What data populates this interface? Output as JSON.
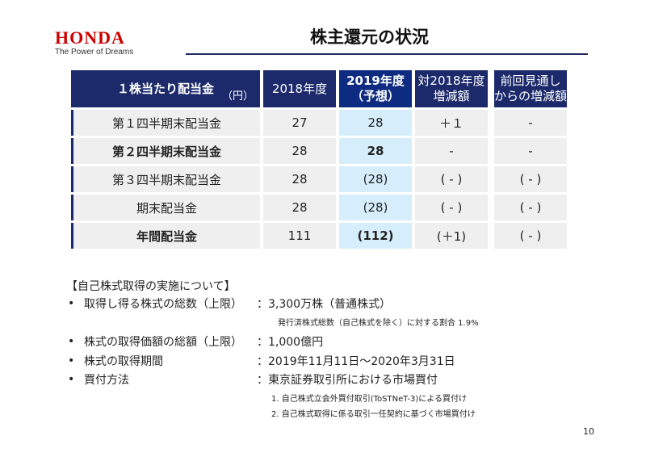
{
  "header": {
    "logo_word": "HONDA",
    "logo_tagline": "The Power of Dreams",
    "title": "株主還元の状況"
  },
  "dividend_table": {
    "header": {
      "label": "１株当たり配当金",
      "unit": "（円）",
      "col_2018": "2018年度",
      "col_2019_line1": "2019年度",
      "col_2019_line2": "（予想）",
      "col_diff_line1": "対2018年度",
      "col_diff_line2": "増減額",
      "col_prev_line1": "前回見通し",
      "col_prev_line2": "からの増減額"
    },
    "rows": [
      {
        "label": "第１四半期末配当金",
        "y2018": "27",
        "y2019": "28",
        "diff": "＋１",
        "prev": "-"
      },
      {
        "label": "第２四半期末配当金",
        "y2018": "28",
        "y2019": "28",
        "diff": "-",
        "prev": "-"
      },
      {
        "label": "第３四半期末配当金",
        "y2018": "28",
        "y2019": "(28)",
        "diff": "( - )",
        "prev": "( - )"
      },
      {
        "label": "期末配当金",
        "y2018": "28",
        "y2019": "(28)",
        "diff": "( - )",
        "prev": "( - )"
      },
      {
        "label": "年間配当金",
        "y2018": "111",
        "y2019": "(112)",
        "diff": "(＋1)",
        "prev": "( - )"
      }
    ]
  },
  "buyback": {
    "heading": "【自己株式取得の実施について】",
    "bullet": "•",
    "items": [
      {
        "label": "取得し得る株式の総数（上限）",
        "value": "：3,300万株（普通株式）"
      },
      {
        "label": "株式の取得価額の総額（上限）",
        "value": "：1,000億円"
      },
      {
        "label": "株式の取得期間",
        "value": "：2019年11月11日～2020年3月31日"
      },
      {
        "label": "買付方法",
        "value": "：東京証券取引所における市場買付"
      }
    ],
    "ratio_note": "発行済株式総数（自己株式を除く）に対する割合 1.9%",
    "method_notes": [
      "1.  自己株式立会外買付取引(ToSTNeT-3)による買付け",
      "2.  自己株式取得に係る取引一任契約に基づく市場買付け"
    ]
  },
  "page_number": "10",
  "colors": {
    "brand_red": "#cc0000",
    "header_navy": "#1c2a6b",
    "highlight_blue": "#d6eefb",
    "cell_gray": "#efefef"
  }
}
